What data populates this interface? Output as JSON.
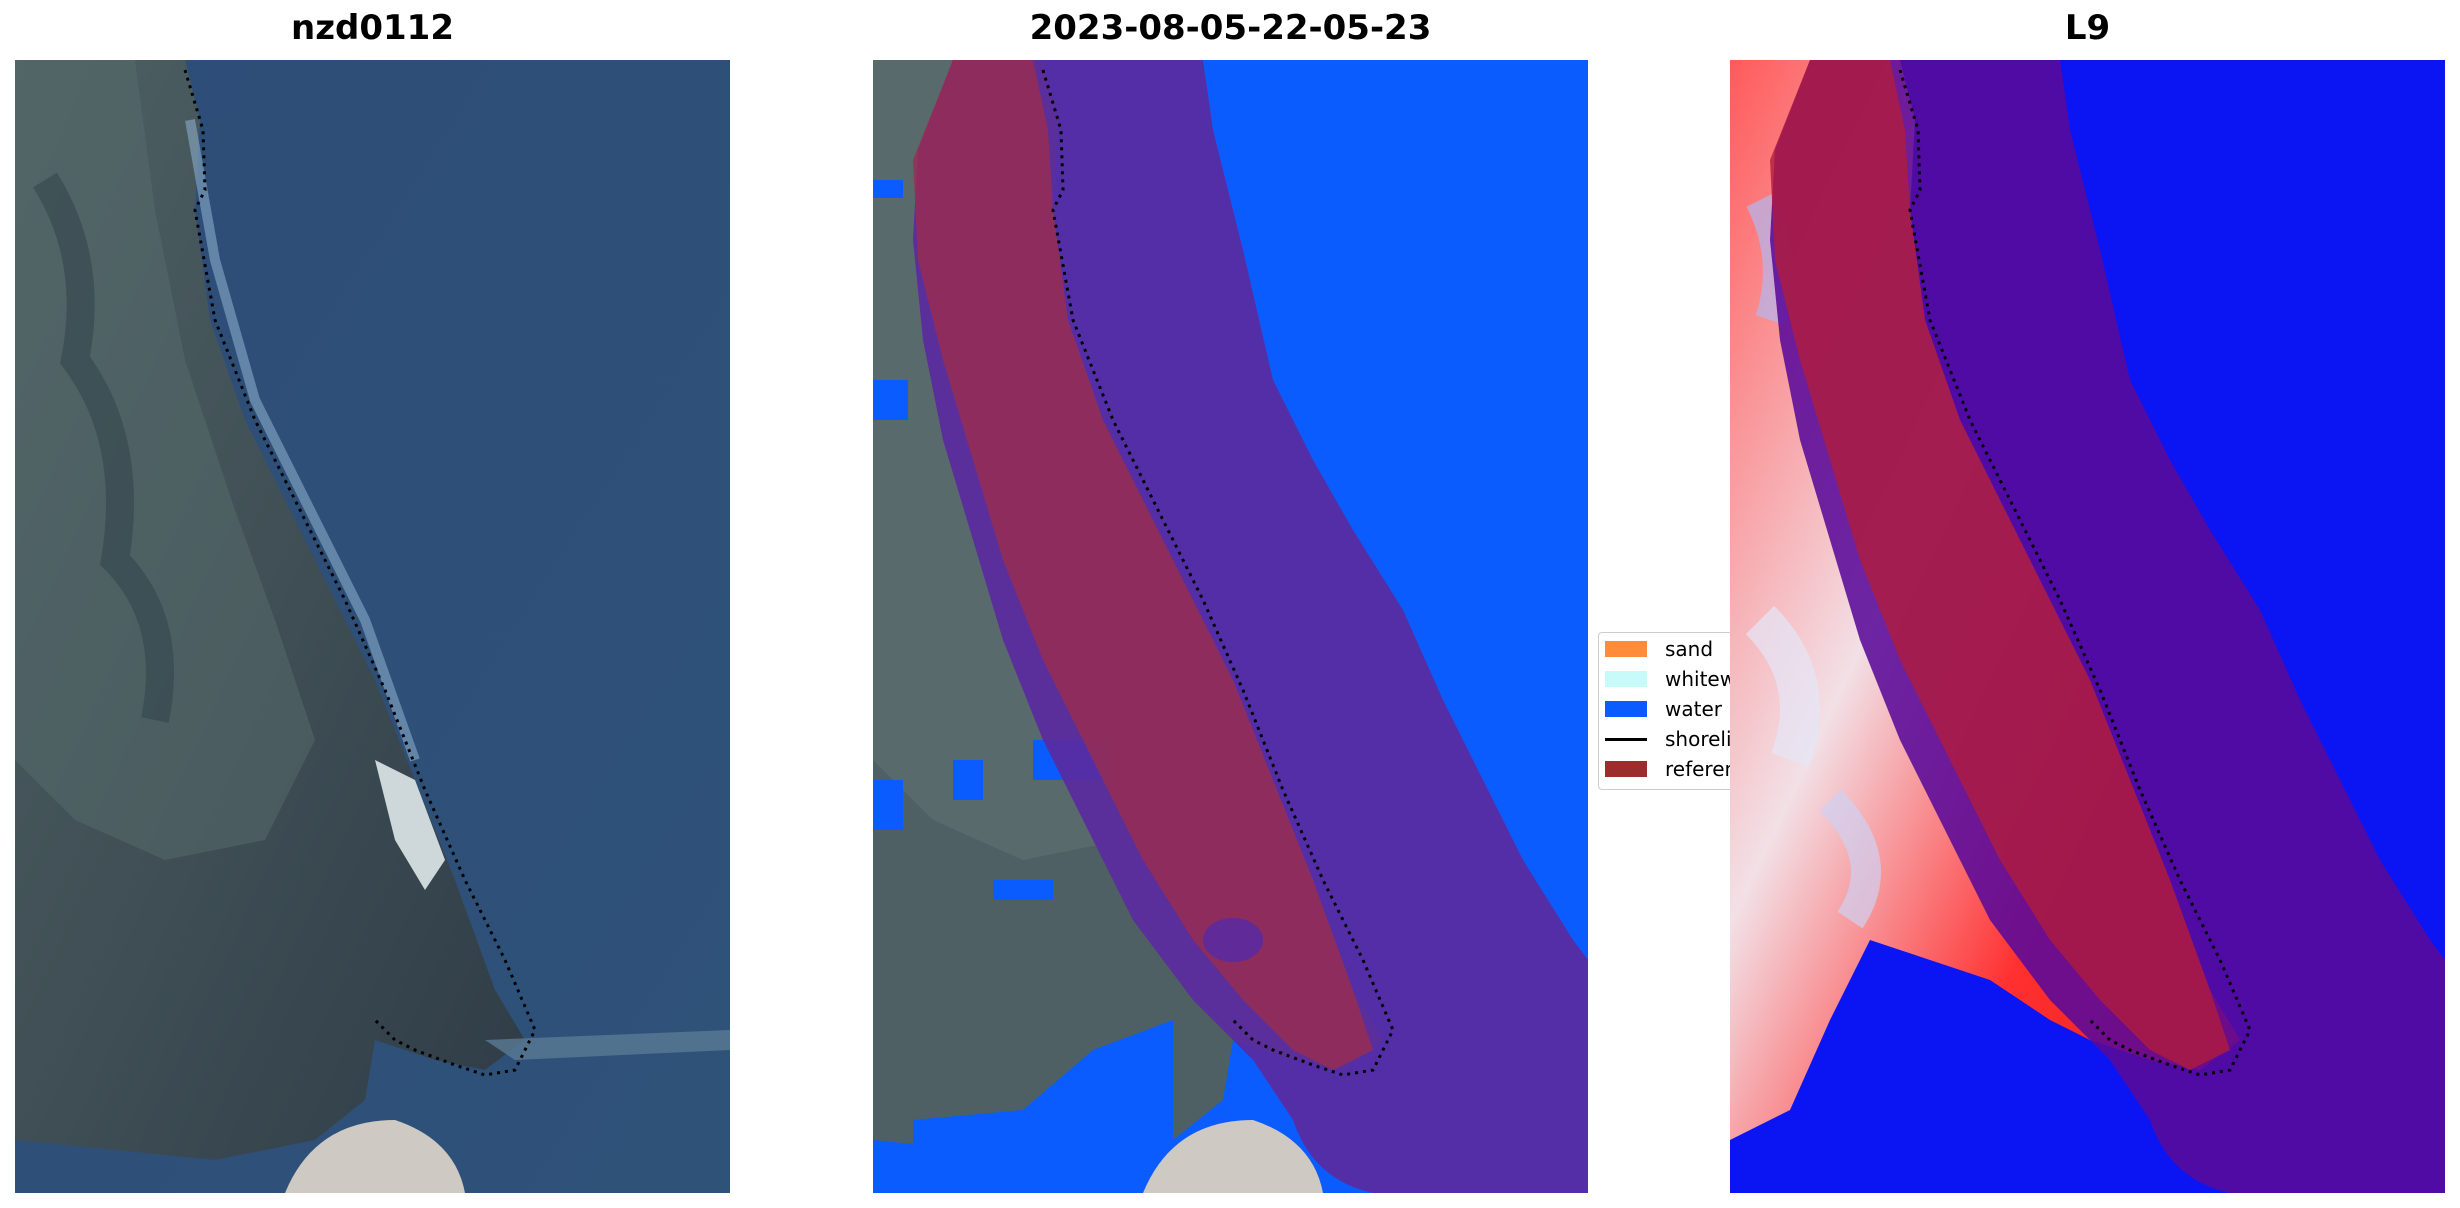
{
  "panels": [
    {
      "title": "nzd0112"
    },
    {
      "title": "2023-08-05-22-05-23"
    },
    {
      "title": "L9"
    }
  ],
  "legend": {
    "items": [
      {
        "label": "sand",
        "color": "#ff8c3a",
        "kind": "patch"
      },
      {
        "label": "whitewater",
        "color": "#c8fafa",
        "kind": "patch"
      },
      {
        "label": "water",
        "color": "#0a5cff",
        "kind": "patch"
      },
      {
        "label": "shoreline",
        "color": "#000000",
        "kind": "line"
      },
      {
        "label": "reference",
        "color": "#9b2d2d",
        "kind": "patch"
      }
    ]
  },
  "colors": {
    "ocean": "#2e4f7a",
    "land": "#4a5a5c",
    "water_class": "#0a5cff",
    "buffer_overlay": "#5b2aa0",
    "reference_band": "#9b2d4d",
    "index_high": "#ff1a1a",
    "index_low": "#0000ff",
    "shoreline": "#000000"
  }
}
